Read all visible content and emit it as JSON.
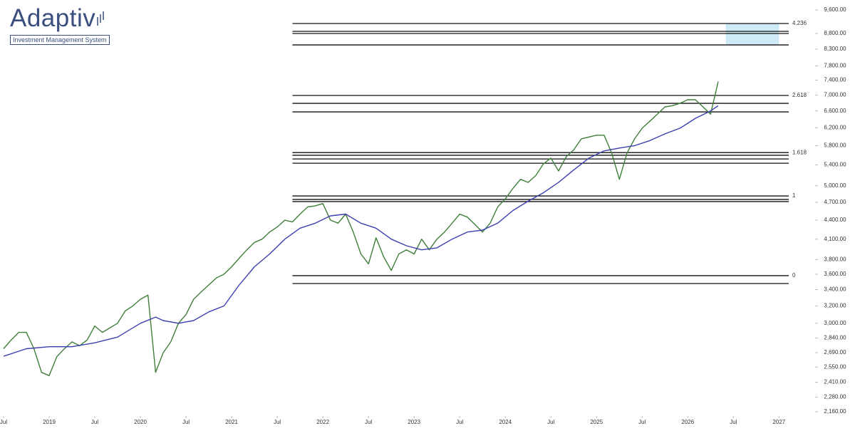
{
  "logo": {
    "name": "Adaptiv",
    "tagline": "Investment Management System"
  },
  "chart_data": {
    "type": "line",
    "log_scale": true,
    "xlim": [
      "2018-07",
      "2027-02"
    ],
    "xticks": [
      {
        "value": "2018-07",
        "label": "Jul"
      },
      {
        "value": "2019-01",
        "label": "2019"
      },
      {
        "value": "2019-07",
        "label": "Jul"
      },
      {
        "value": "2020-01",
        "label": "2020"
      },
      {
        "value": "2020-07",
        "label": "Jul"
      },
      {
        "value": "2021-01",
        "label": "2021"
      },
      {
        "value": "2021-07",
        "label": "Jul"
      },
      {
        "value": "2022-01",
        "label": "2022"
      },
      {
        "value": "2022-07",
        "label": "Jul"
      },
      {
        "value": "2023-01",
        "label": "2023"
      },
      {
        "value": "2023-07",
        "label": "Jul"
      },
      {
        "value": "2024-01",
        "label": "2024"
      },
      {
        "value": "2024-07",
        "label": "Jul"
      },
      {
        "value": "2025-01",
        "label": "2025"
      },
      {
        "value": "2025-07",
        "label": "Jul"
      },
      {
        "value": "2026-01",
        "label": "2026"
      },
      {
        "value": "2026-07",
        "label": "Jul"
      },
      {
        "value": "2027-01",
        "label": "2027"
      }
    ],
    "ylim": [
      2160,
      9600
    ],
    "yticks": [
      {
        "value": 9600,
        "label": "9,600.00"
      },
      {
        "value": 8800,
        "label": "8,800.00"
      },
      {
        "value": 8300,
        "label": "8,300.00"
      },
      {
        "value": 7800,
        "label": "7,800.00"
      },
      {
        "value": 7400,
        "label": "7,400.00"
      },
      {
        "value": 7000,
        "label": "7,000.00"
      },
      {
        "value": 6600,
        "label": "6,600.00"
      },
      {
        "value": 6200,
        "label": "6,200.00"
      },
      {
        "value": 5800,
        "label": "5,800.00"
      },
      {
        "value": 5400,
        "label": "5,400.00"
      },
      {
        "value": 5000,
        "label": "5,000.00"
      },
      {
        "value": 4700,
        "label": "4,700.00"
      },
      {
        "value": 4400,
        "label": "4,400.00"
      },
      {
        "value": 4100,
        "label": "4,100.00"
      },
      {
        "value": 3800,
        "label": "3,800.00"
      },
      {
        "value": 3600,
        "label": "3,600.00"
      },
      {
        "value": 3400,
        "label": "3,400.00"
      },
      {
        "value": 3200,
        "label": "3,200.00"
      },
      {
        "value": 3000,
        "label": "3,000.00"
      },
      {
        "value": 2840,
        "label": "2,840.00"
      },
      {
        "value": 2690,
        "label": "2,690.00"
      },
      {
        "value": 2550,
        "label": "2,550.00"
      },
      {
        "value": 2410,
        "label": "2,410.00"
      },
      {
        "value": 2280,
        "label": "2,280.00"
      },
      {
        "value": 2160,
        "label": "2,160.00"
      }
    ],
    "series": [
      {
        "color": "#3f7f3a",
        "x": [
          "2018-07",
          "2018-08",
          "2018-09",
          "2018-10",
          "2018-11",
          "2018-12",
          "2019-01",
          "2019-02",
          "2019-03",
          "2019-04",
          "2019-05",
          "2019-06",
          "2019-07",
          "2019-08",
          "2019-09",
          "2019-10",
          "2019-11",
          "2019-12",
          "2020-01",
          "2020-02",
          "2020-03",
          "2020-04",
          "2020-05",
          "2020-06",
          "2020-07",
          "2020-08",
          "2020-09",
          "2020-10",
          "2020-11",
          "2020-12",
          "2021-01",
          "2021-02",
          "2021-03",
          "2021-04",
          "2021-05",
          "2021-06",
          "2021-07",
          "2021-08",
          "2021-09",
          "2021-10",
          "2021-11",
          "2021-12",
          "2022-01",
          "2022-02",
          "2022-03",
          "2022-04",
          "2022-05",
          "2022-06",
          "2022-07",
          "2022-08",
          "2022-09",
          "2022-10",
          "2022-11",
          "2022-12",
          "2023-01",
          "2023-02",
          "2023-03",
          "2023-04",
          "2023-05",
          "2023-06",
          "2023-07",
          "2023-08",
          "2023-09",
          "2023-10",
          "2023-11",
          "2023-12",
          "2024-01",
          "2024-02",
          "2024-03",
          "2024-04",
          "2024-05",
          "2024-06",
          "2024-07",
          "2024-08",
          "2024-09",
          "2024-10",
          "2024-11",
          "2024-12",
          "2025-01",
          "2025-02",
          "2025-03",
          "2025-04",
          "2025-05",
          "2025-06",
          "2025-07",
          "2025-08",
          "2025-09",
          "2025-10",
          "2025-11",
          "2025-12",
          "2026-01",
          "2026-02",
          "2026-03",
          "2026-04",
          "2026-05"
        ],
        "values": [
          2730,
          2820,
          2900,
          2900,
          2730,
          2500,
          2470,
          2650,
          2730,
          2800,
          2760,
          2820,
          2970,
          2900,
          2950,
          3000,
          3140,
          3200,
          3280,
          3330,
          2500,
          2690,
          2800,
          3000,
          3100,
          3280,
          3370,
          3460,
          3550,
          3600,
          3700,
          3820,
          3940,
          4050,
          4100,
          4210,
          4290,
          4400,
          4370,
          4500,
          4620,
          4640,
          4680,
          4400,
          4350,
          4500,
          4210,
          3880,
          3740,
          4120,
          3840,
          3650,
          3880,
          3940,
          3880,
          4100,
          3940,
          4100,
          4210,
          4350,
          4500,
          4450,
          4330,
          4210,
          4350,
          4620,
          4760,
          4950,
          5120,
          5060,
          5190,
          5420,
          5540,
          5280,
          5565,
          5710,
          5950,
          5990,
          6030,
          6030,
          5640,
          5120,
          5640,
          5950,
          6190,
          6350,
          6520,
          6700,
          6730,
          6790,
          6880,
          6880,
          6700,
          6520,
          7360
        ]
      },
      {
        "color": "#3c3fb0",
        "x": [
          "2018-07",
          "2018-10",
          "2019-01",
          "2019-04",
          "2019-07",
          "2019-10",
          "2020-01",
          "2020-03",
          "2020-04",
          "2020-06",
          "2020-08",
          "2020-10",
          "2020-12",
          "2021-02",
          "2021-04",
          "2021-06",
          "2021-08",
          "2021-10",
          "2021-12",
          "2022-02",
          "2022-04",
          "2022-06",
          "2022-08",
          "2022-10",
          "2022-12",
          "2023-02",
          "2023-04",
          "2023-06",
          "2023-08",
          "2023-10",
          "2023-12",
          "2024-02",
          "2024-04",
          "2024-06",
          "2024-08",
          "2024-10",
          "2024-12",
          "2025-02",
          "2025-04",
          "2025-06",
          "2025-08",
          "2025-10",
          "2025-12",
          "2026-02",
          "2026-04",
          "2026-05"
        ],
        "values": [
          2654,
          2730,
          2750,
          2750,
          2790,
          2850,
          3000,
          3070,
          3030,
          3000,
          3030,
          3130,
          3200,
          3460,
          3700,
          3880,
          4100,
          4270,
          4350,
          4470,
          4500,
          4350,
          4270,
          4100,
          4000,
          3940,
          3970,
          4100,
          4210,
          4240,
          4350,
          4560,
          4720,
          4870,
          5060,
          5300,
          5540,
          5690,
          5750,
          5800,
          5910,
          6060,
          6190,
          6420,
          6600,
          6730
        ]
      }
    ],
    "levels_start": "2021-09",
    "levels": [
      {
        "value": 9130,
        "label": "4.236"
      },
      {
        "value": 8868
      },
      {
        "value": 8798
      },
      {
        "value": 8432
      },
      {
        "value": 6989,
        "label": "2.618"
      },
      {
        "value": 6788
      },
      {
        "value": 6576
      },
      {
        "value": 5654,
        "label": "1.618"
      },
      {
        "value": 5598
      },
      {
        "value": 5522
      },
      {
        "value": 5435
      },
      {
        "value": 4813,
        "label": "1"
      },
      {
        "value": 4751
      },
      {
        "value": 4714
      },
      {
        "value": 3580,
        "label": "0"
      },
      {
        "value": 3477
      }
    ],
    "zones": [
      {
        "x": [
          "2026-06",
          "2027-01"
        ],
        "y": [
          8450,
          9130
        ],
        "color": "#cdeaf6"
      }
    ]
  }
}
